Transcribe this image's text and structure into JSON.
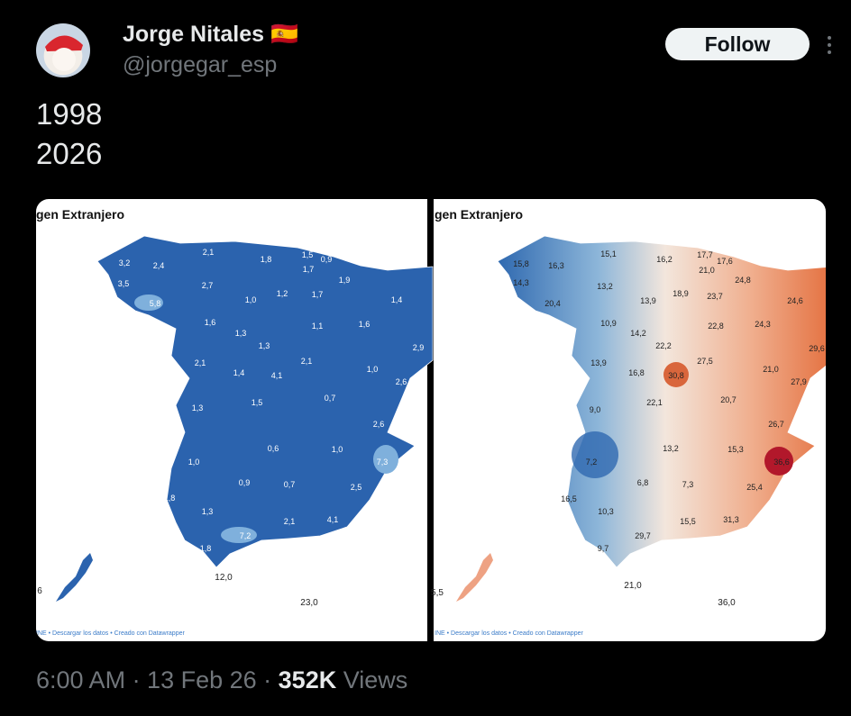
{
  "tweet": {
    "author": {
      "name": "Jorge Nitales",
      "flag": "🇪🇸",
      "handle": "@jorgegar_esp"
    },
    "follow": "Follow",
    "text": [
      "1998",
      "2026"
    ],
    "images": [
      {
        "title": "gen Extranjero",
        "labels": [
          "2,1",
          "1,8",
          "1,5",
          "0,9",
          "3,2",
          "2,4",
          "1,7",
          "3,5",
          "2,7",
          "1,9",
          "1,2",
          "1,7",
          "1,0",
          "5,8",
          "1,4",
          "1,6",
          "1,1",
          "1,6",
          "1,3",
          "1,3",
          "2,9",
          "2,1",
          "2,1",
          "1,4",
          "4,1",
          "1,0",
          "2,6",
          "0,7",
          "1,5",
          "1,3",
          "2,6",
          "0,6",
          "1,0",
          "1,0",
          "7,3",
          "0,9",
          "0,7",
          "2,5",
          "1,8",
          "1,3",
          "2,1",
          "4,1",
          "7,2",
          "1,8",
          "12,0",
          "6",
          "23,0"
        ],
        "footer": "INE • Descargar los datos • Creado con Datawrapper"
      },
      {
        "title": "gen Extranjero",
        "labels": [
          "15,1",
          "16,2",
          "17,7",
          "17,6",
          "15,8",
          "16,3",
          "21,0",
          "14,3",
          "13,2",
          "24,8",
          "18,9",
          "23,7",
          "13,9",
          "20,4",
          "24,6",
          "10,9",
          "22,8",
          "24,3",
          "14,2",
          "22,2",
          "29,6",
          "13,9",
          "27,5",
          "16,8",
          "30,8",
          "21,0",
          "27,9",
          "20,7",
          "22,1",
          "9,0",
          "26,7",
          "13,2",
          "15,3",
          "7,2",
          "36,6",
          "6,8",
          "7,3",
          "25,4",
          "16,5",
          "10,3",
          "15,5",
          "31,3",
          "29,7",
          "9,7",
          "21,0",
          "5,5",
          "36,0"
        ],
        "footer": "INE • Descargar los datos • Creado con Datawrapper"
      }
    ],
    "meta": "6:00 AM · 13 Feb 26 ·",
    "views": "352K",
    "views_label": "Views"
  }
}
